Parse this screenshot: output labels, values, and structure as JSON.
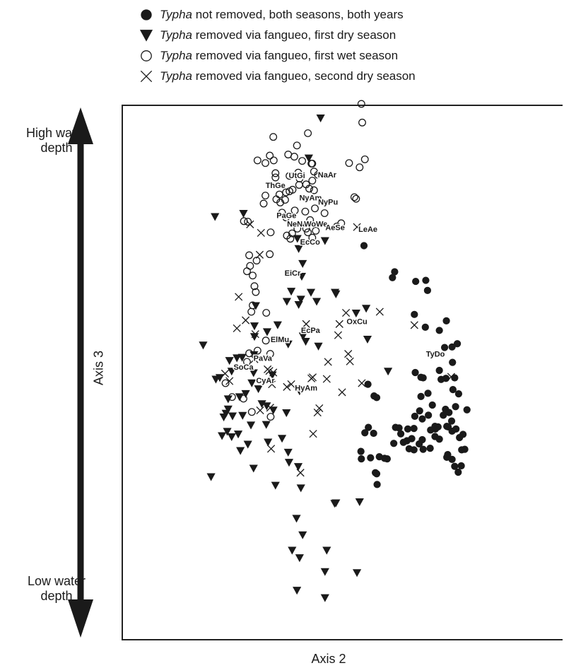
{
  "legend": {
    "items": [
      {
        "marker": "filled-circle",
        "genus": "Typha",
        "text": " not removed, both seasons, both years"
      },
      {
        "marker": "filled-triangle",
        "genus": "Typha",
        "text": " removed via fangueo, first dry season"
      },
      {
        "marker": "open-circle",
        "genus": "Typha",
        "text": " removed via fangueo, first wet season"
      },
      {
        "marker": "cross",
        "genus": "Typha",
        "text": " removed via fangueo, second dry season"
      }
    ]
  },
  "axis_words": {
    "high": "High water depth",
    "low": "Low water depth",
    "x": "Axis 2",
    "y": "Axis 3"
  },
  "colors": {
    "marker": "#1a1a1a",
    "background": "#ffffff"
  },
  "chart_data": {
    "type": "scatter",
    "xlabel": "Axis 2",
    "ylabel": "Axis 3",
    "xlim": [
      0,
      1000
    ],
    "ylim": [
      0,
      1000
    ],
    "grid": false,
    "legend_position": "top",
    "series": [
      {
        "name": "Typha not removed, both seasons, both years",
        "marker": "filled-circle",
        "points": [
          [
            550,
            738
          ],
          [
            620,
            689
          ],
          [
            615,
            678
          ],
          [
            668,
            671
          ],
          [
            691,
            673
          ],
          [
            695,
            654
          ],
          [
            665,
            609
          ],
          [
            690,
            585
          ],
          [
            738,
            597
          ],
          [
            722,
            579
          ],
          [
            751,
            548
          ],
          [
            763,
            554
          ],
          [
            734,
            547
          ],
          [
            752,
            519
          ],
          [
            722,
            504
          ],
          [
            737,
            489
          ],
          [
            766,
            460
          ],
          [
            726,
            487
          ],
          [
            759,
            436
          ],
          [
            736,
            431
          ],
          [
            785,
            430
          ],
          [
            731,
            420
          ],
          [
            750,
            409
          ],
          [
            751,
            390
          ],
          [
            768,
            378
          ],
          [
            780,
            356
          ],
          [
            712,
            380
          ],
          [
            713,
            394
          ],
          [
            722,
            375
          ],
          [
            683,
            374
          ],
          [
            659,
            376
          ],
          [
            664,
            395
          ],
          [
            650,
            394
          ],
          [
            630,
            396
          ],
          [
            634,
            385
          ],
          [
            622,
            397
          ],
          [
            666,
            418
          ],
          [
            677,
            428
          ],
          [
            680,
            455
          ],
          [
            685,
            490
          ],
          [
            680,
            491
          ],
          [
            667,
            500
          ],
          [
            696,
            461
          ],
          [
            706,
            439
          ],
          [
            697,
            420
          ],
          [
            683,
            413
          ],
          [
            702,
            392
          ],
          [
            712,
            399
          ],
          [
            719,
            398
          ],
          [
            742,
            398
          ],
          [
            760,
            394
          ],
          [
            776,
            384
          ],
          [
            773,
            355
          ],
          [
            739,
            341
          ],
          [
            772,
            325
          ],
          [
            765,
            313
          ],
          [
            757,
            324
          ],
          [
            751,
            337
          ],
          [
            741,
            346
          ],
          [
            739,
            399
          ],
          [
            744,
            425
          ],
          [
            753,
            468
          ],
          [
            757,
            490
          ],
          [
            701,
            358
          ],
          [
            685,
            356
          ],
          [
            676,
            366
          ],
          [
            664,
            355
          ],
          [
            653,
            357
          ],
          [
            640,
            369
          ],
          [
            618,
            367
          ],
          [
            648,
            372
          ],
          [
            603,
            338
          ],
          [
            597,
            339
          ],
          [
            585,
            342
          ],
          [
            579,
            310
          ],
          [
            580,
            290
          ],
          [
            576,
            312
          ],
          [
            565,
            340
          ],
          [
            543,
            352
          ],
          [
            552,
            387
          ],
          [
            560,
            397
          ],
          [
            573,
            456
          ],
          [
            559,
            478
          ],
          [
            579,
            453
          ],
          [
            572,
            386
          ],
          [
            544,
            338
          ]
        ]
      },
      {
        "name": "Typha removed via fangueo, first dry season",
        "marker": "filled-triangle",
        "points": [
          [
            451,
            977
          ],
          [
            424,
            902
          ],
          [
            275,
            798
          ],
          [
            210,
            792
          ],
          [
            398,
            751
          ],
          [
            461,
            747
          ],
          [
            401,
            732
          ],
          [
            410,
            704
          ],
          [
            384,
            652
          ],
          [
            408,
            680
          ],
          [
            429,
            650
          ],
          [
            406,
            637
          ],
          [
            303,
            625
          ],
          [
            374,
            633
          ],
          [
            442,
            633
          ],
          [
            484,
            650
          ],
          [
            353,
            589
          ],
          [
            300,
            587
          ],
          [
            329,
            576
          ],
          [
            411,
            568
          ],
          [
            377,
            553
          ],
          [
            299,
            533
          ],
          [
            272,
            528
          ],
          [
            260,
            527
          ],
          [
            243,
            522
          ],
          [
            248,
            502
          ],
          [
            221,
            490
          ],
          [
            212,
            487
          ],
          [
            298,
            499
          ],
          [
            341,
            495
          ],
          [
            294,
            480
          ],
          [
            309,
            469
          ],
          [
            280,
            460
          ],
          [
            266,
            454
          ],
          [
            240,
            450
          ],
          [
            235,
            423
          ],
          [
            240,
            431
          ],
          [
            250,
            418
          ],
          [
            230,
            416
          ],
          [
            238,
            389
          ],
          [
            226,
            381
          ],
          [
            273,
            419
          ],
          [
            248,
            379
          ],
          [
            263,
            384
          ],
          [
            268,
            353
          ],
          [
            285,
            365
          ],
          [
            292,
            401
          ],
          [
            317,
            441
          ],
          [
            328,
            437
          ],
          [
            343,
            429
          ],
          [
            327,
            402
          ],
          [
            373,
            424
          ],
          [
            403,
            465
          ],
          [
            331,
            369
          ],
          [
            298,
            320
          ],
          [
            363,
            376
          ],
          [
            377,
            350
          ],
          [
            379,
            331
          ],
          [
            400,
            323
          ],
          [
            406,
            283
          ],
          [
            348,
            288
          ],
          [
            396,
            226
          ],
          [
            483,
            254
          ],
          [
            486,
            255
          ],
          [
            540,
            257
          ],
          [
            410,
            195
          ],
          [
            386,
            166
          ],
          [
            465,
            166
          ],
          [
            403,
            152
          ],
          [
            461,
            126
          ],
          [
            534,
            124
          ],
          [
            397,
            91
          ],
          [
            461,
            77
          ],
          [
            201,
            304
          ],
          [
            183,
            551
          ],
          [
            300,
            567
          ],
          [
            401,
            627
          ],
          [
            532,
            611
          ],
          [
            555,
            620
          ],
          [
            605,
            502
          ],
          [
            558,
            562
          ],
          [
            446,
            549
          ],
          [
            417,
            558
          ],
          [
            486,
            647
          ]
        ]
      },
      {
        "name": "Typha removed via fangueo, first wet season",
        "marker": "open-circle",
        "points": [
          [
            422,
            949
          ],
          [
            397,
            926
          ],
          [
            335,
            907
          ],
          [
            343,
            942
          ],
          [
            377,
            909
          ],
          [
            307,
            898
          ],
          [
            325,
            893
          ],
          [
            432,
            892
          ],
          [
            409,
            897
          ],
          [
            391,
            905
          ],
          [
            344,
            898
          ],
          [
            348,
            866
          ],
          [
            325,
            832
          ],
          [
            321,
            817
          ],
          [
            403,
            864
          ],
          [
            436,
            842
          ],
          [
            445,
            871
          ],
          [
            552,
            900
          ],
          [
            516,
            893
          ],
          [
            528,
            829
          ],
          [
            380,
            869
          ],
          [
            348,
            874
          ],
          [
            357,
            834
          ],
          [
            350,
            825
          ],
          [
            359,
            819
          ],
          [
            370,
            824
          ],
          [
            372,
            838
          ],
          [
            387,
            843
          ],
          [
            402,
            852
          ],
          [
            418,
            853
          ],
          [
            425,
            845
          ],
          [
            432,
            860
          ],
          [
            436,
            877
          ],
          [
            430,
            892
          ],
          [
            400,
            875
          ],
          [
            380,
            840
          ],
          [
            363,
            800
          ],
          [
            372,
            791
          ],
          [
            392,
            804
          ],
          [
            416,
            802
          ],
          [
            438,
            808
          ],
          [
            460,
            799
          ],
          [
            498,
            780
          ],
          [
            427,
            786
          ],
          [
            422,
            763
          ],
          [
            398,
            770
          ],
          [
            374,
            757
          ],
          [
            337,
            763
          ],
          [
            335,
            722
          ],
          [
            305,
            710
          ],
          [
            290,
            700
          ],
          [
            283,
            690
          ],
          [
            288,
            720
          ],
          [
            296,
            682
          ],
          [
            300,
            662
          ],
          [
            303,
            651
          ],
          [
            296,
            626
          ],
          [
            293,
            614
          ],
          [
            327,
            612
          ],
          [
            336,
            535
          ],
          [
            326,
            560
          ],
          [
            307,
            541
          ],
          [
            288,
            536
          ],
          [
            283,
            520
          ],
          [
            234,
            480
          ],
          [
            249,
            454
          ],
          [
            275,
            451
          ],
          [
            294,
            426
          ],
          [
            337,
            417
          ],
          [
            418,
            770
          ],
          [
            382,
            751
          ],
          [
            386,
            761
          ],
          [
            285,
            783
          ],
          [
            276,
            784
          ],
          [
            540,
            885
          ],
          [
            544,
            1004
          ],
          [
            546,
            969
          ],
          [
            532,
            826
          ],
          [
            488,
            774
          ],
          [
            432,
            753
          ],
          [
            440,
            766
          ]
        ]
      },
      {
        "name": "Typha removed via fangueo, second dry season",
        "marker": "cross",
        "points": [
          [
            534,
            773
          ],
          [
            315,
            762
          ],
          [
            290,
            778
          ],
          [
            312,
            721
          ],
          [
            264,
            642
          ],
          [
            280,
            598
          ],
          [
            302,
            572
          ],
          [
            260,
            583
          ],
          [
            233,
            498
          ],
          [
            243,
            484
          ],
          [
            300,
            525
          ],
          [
            343,
            500
          ],
          [
            334,
            503
          ],
          [
            330,
            506
          ],
          [
            340,
            478
          ],
          [
            374,
            473
          ],
          [
            384,
            478
          ],
          [
            430,
            489
          ],
          [
            433,
            491
          ],
          [
            465,
            488
          ],
          [
            468,
            520
          ],
          [
            518,
            521
          ],
          [
            545,
            480
          ],
          [
            514,
            535
          ],
          [
            500,
            463
          ],
          [
            444,
            425
          ],
          [
            448,
            433
          ],
          [
            491,
            570
          ],
          [
            509,
            612
          ],
          [
            494,
            591
          ],
          [
            586,
            614
          ],
          [
            665,
            589
          ],
          [
            749,
            492
          ],
          [
            418,
            591
          ],
          [
            434,
            385
          ],
          [
            336,
            434
          ],
          [
            338,
            357
          ],
          [
            313,
            429
          ],
          [
            405,
            312
          ]
        ]
      }
    ],
    "labels": [
      {
        "text": "UtGi",
        "x": 397,
        "y": 865
      },
      {
        "text": "NaAr",
        "x": 466,
        "y": 866
      },
      {
        "text": "ThGe",
        "x": 348,
        "y": 846
      },
      {
        "text": "NyAm",
        "x": 428,
        "y": 823
      },
      {
        "text": "NyPu",
        "x": 468,
        "y": 815
      },
      {
        "text": "PaGe",
        "x": 373,
        "y": 790
      },
      {
        "text": "NeNa",
        "x": 397,
        "y": 774
      },
      {
        "text": "WoWe",
        "x": 440,
        "y": 774
      },
      {
        "text": "AeSe",
        "x": 484,
        "y": 767
      },
      {
        "text": "LeAe",
        "x": 559,
        "y": 764
      },
      {
        "text": "EcCo",
        "x": 427,
        "y": 740
      },
      {
        "text": "EiCr",
        "x": 387,
        "y": 682
      },
      {
        "text": "OxCu",
        "x": 534,
        "y": 591
      },
      {
        "text": "EcPa",
        "x": 428,
        "y": 574
      },
      {
        "text": "ElMu",
        "x": 358,
        "y": 557
      },
      {
        "text": "TyDo",
        "x": 713,
        "y": 530
      },
      {
        "text": "PaVa",
        "x": 319,
        "y": 522
      },
      {
        "text": "SoCa",
        "x": 275,
        "y": 505
      },
      {
        "text": "CyAr",
        "x": 325,
        "y": 480
      },
      {
        "text": "HyAm",
        "x": 418,
        "y": 466
      }
    ]
  }
}
